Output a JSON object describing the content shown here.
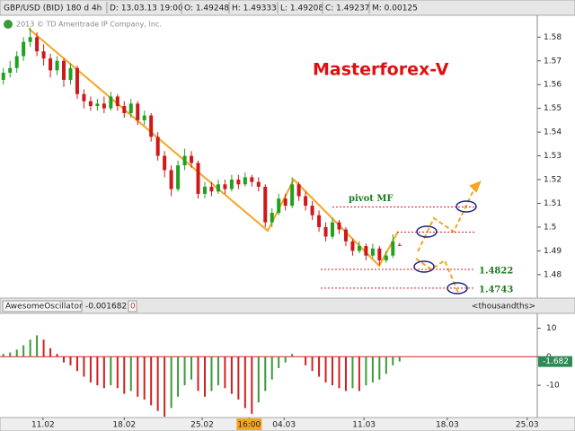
{
  "header": {
    "fields": [
      "GBP/USD (BID) 180 d 4h",
      "D: 13.03.13 19:00",
      "O: 1.49248",
      "H: 1.49333",
      "L: 1.49208",
      "C: 1.49237",
      "M: 0.00125"
    ],
    "copyright": "2013 © TD Ameritrade IP Company, Inc."
  },
  "chart_data": [
    {
      "type": "candlestick",
      "title": "Masterforex-V",
      "up_color": "#22a022",
      "down_color": "#d01818",
      "open": [
        1.562,
        1.565,
        1.567,
        1.572,
        1.578,
        1.58,
        1.574,
        1.571,
        1.566,
        1.57,
        1.562,
        1.567,
        1.556,
        1.553,
        1.551,
        1.552,
        1.55,
        1.555,
        1.551,
        1.548,
        1.552,
        1.545,
        1.547,
        1.538,
        1.53,
        1.524,
        1.516,
        1.526,
        1.53,
        1.527,
        1.514,
        1.517,
        1.515,
        1.518,
        1.516,
        1.52,
        1.518,
        1.521,
        1.519,
        1.517,
        1.502,
        1.506,
        1.512,
        1.509,
        1.518,
        1.513,
        1.509,
        1.505,
        1.5,
        1.496,
        1.502,
        1.499,
        1.494,
        1.49,
        1.492,
        1.488,
        1.491,
        1.486,
        1.488,
        1.49248
      ],
      "high": [
        1.567,
        1.57,
        1.574,
        1.58,
        1.584,
        1.582,
        1.577,
        1.573,
        1.572,
        1.571,
        1.569,
        1.568,
        1.558,
        1.555,
        1.554,
        1.555,
        1.557,
        1.556,
        1.553,
        1.554,
        1.553,
        1.549,
        1.548,
        1.54,
        1.532,
        1.526,
        1.528,
        1.533,
        1.532,
        1.528,
        1.519,
        1.519,
        1.52,
        1.52,
        1.522,
        1.522,
        1.523,
        1.522,
        1.521,
        1.518,
        1.508,
        1.514,
        1.514,
        1.521,
        1.519,
        1.515,
        1.511,
        1.507,
        1.502,
        1.504,
        1.503,
        1.5,
        1.495,
        1.494,
        1.493,
        1.493,
        1.492,
        1.49,
        1.497,
        1.49333
      ],
      "low": [
        1.56,
        1.563,
        1.565,
        1.57,
        1.576,
        1.572,
        1.568,
        1.563,
        1.564,
        1.559,
        1.56,
        1.554,
        1.55,
        1.549,
        1.549,
        1.548,
        1.549,
        1.549,
        1.546,
        1.546,
        1.543,
        1.543,
        1.536,
        1.528,
        1.521,
        1.513,
        1.515,
        1.524,
        1.525,
        1.512,
        1.512,
        1.513,
        1.514,
        1.514,
        1.515,
        1.516,
        1.517,
        1.517,
        1.515,
        1.5,
        1.5,
        1.505,
        1.507,
        1.508,
        1.511,
        1.507,
        1.503,
        1.498,
        1.494,
        1.495,
        1.497,
        1.492,
        1.488,
        1.489,
        1.486,
        1.487,
        1.484,
        1.485,
        1.487,
        1.49208
      ],
      "close": [
        1.565,
        1.567,
        1.572,
        1.578,
        1.58,
        1.574,
        1.571,
        1.566,
        1.57,
        1.562,
        1.567,
        1.556,
        1.553,
        1.551,
        1.552,
        1.55,
        1.555,
        1.551,
        1.548,
        1.552,
        1.545,
        1.547,
        1.538,
        1.53,
        1.524,
        1.516,
        1.526,
        1.53,
        1.527,
        1.514,
        1.517,
        1.515,
        1.518,
        1.516,
        1.52,
        1.518,
        1.521,
        1.519,
        1.517,
        1.502,
        1.506,
        1.512,
        1.509,
        1.518,
        1.513,
        1.509,
        1.505,
        1.5,
        1.496,
        1.502,
        1.499,
        1.494,
        1.49,
        1.492,
        1.488,
        1.491,
        1.486,
        1.488,
        1.494,
        1.49237
      ],
      "xlim": [
        0,
        80
      ],
      "xticks": [
        {
          "value": 6.4,
          "label": "11.02"
        },
        {
          "value": 18.5,
          "label": "18.02"
        },
        {
          "value": 30.1,
          "label": "25.02"
        },
        {
          "value": 37.1,
          "label": "16:00",
          "highlight": true
        },
        {
          "value": 42.3,
          "label": "04.03"
        },
        {
          "value": 54.2,
          "label": "11.03"
        },
        {
          "value": 66.6,
          "label": "18.03"
        },
        {
          "value": 78.5,
          "label": "25.03"
        }
      ],
      "ylim": [
        1.4701,
        1.5892
      ],
      "yticks": [
        1.48,
        1.49,
        1.5,
        1.51,
        1.52,
        1.53,
        1.54,
        1.55,
        1.56,
        1.57,
        1.58
      ],
      "annotations": [
        {
          "label": "pivot MF",
          "value": 1.5085
        },
        {
          "value": 1.4979
        },
        {
          "label": "1.4822",
          "value": 1.4822
        },
        {
          "label": "1.4743",
          "value": 1.4743
        }
      ]
    },
    {
      "type": "bar",
      "indicator": "AwesomeOscillator",
      "value_text": "-0.001682",
      "param": "0",
      "unit_label": "<thousandths>",
      "last_label": "-1.682",
      "up_color": "#3a9a3a",
      "down_color": "#d02020",
      "values": [
        1,
        1.5,
        2.5,
        4,
        6,
        7.5,
        6,
        3,
        1,
        -2,
        -3,
        -5,
        -7,
        -9,
        -10,
        -11,
        -10,
        -11,
        -13,
        -12,
        -14,
        -15,
        -17,
        -19,
        -21,
        -18,
        -14,
        -10,
        -8,
        -12,
        -14,
        -12,
        -10,
        -11,
        -13,
        -15,
        -18,
        -20,
        -16,
        -12,
        -8,
        -4,
        -2,
        1,
        0,
        -3,
        -5,
        -7,
        -9,
        -10,
        -11,
        -12,
        -11,
        -12,
        -10,
        -9,
        -8,
        -6,
        -3,
        -1.682
      ],
      "ylim": [
        -21.3,
        15.2
      ],
      "yticks": [
        10,
        0,
        -10
      ]
    }
  ]
}
